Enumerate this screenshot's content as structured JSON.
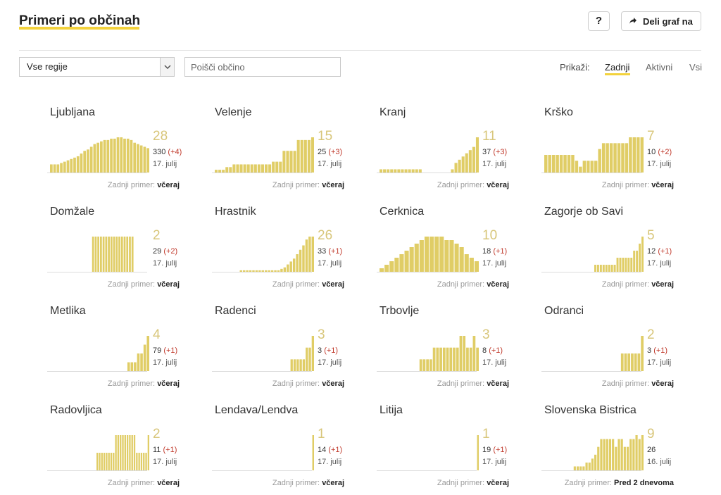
{
  "header": {
    "title": "Primeri po občinah",
    "help_label": "?",
    "share_label": "Deli graf na"
  },
  "filters": {
    "region_value": "Vse regije",
    "search_placeholder": "Poišči občino",
    "show_label": "Prikaži:",
    "show_options": [
      "Zadnji",
      "Aktivni",
      "Vsi"
    ],
    "active_option": "Zadnji"
  },
  "colors": {
    "bar": "#e0cd66",
    "accent": "#f3d23c",
    "delta": "#c0392b"
  },
  "last_case_label": "Zadnji primer:",
  "municipalities": [
    {
      "name": "Ljubljana",
      "active": "28",
      "total": "330",
      "delta": "(+4)",
      "date": "17. julij",
      "last": "včeraj",
      "bars": [
        6,
        6,
        6,
        7,
        8,
        9,
        10,
        11,
        12,
        14,
        16,
        17,
        19,
        21,
        22,
        23,
        24,
        24,
        25,
        25,
        26,
        26,
        25,
        25,
        24,
        22,
        21,
        20,
        19,
        18
      ]
    },
    {
      "name": "Velenje",
      "active": "15",
      "total": "25",
      "delta": "(+3)",
      "date": "17. julij",
      "last": "včeraj",
      "bars": [
        1,
        1,
        1,
        2,
        2,
        3,
        3,
        3,
        3,
        3,
        3,
        3,
        3,
        3,
        3,
        3,
        4,
        4,
        4,
        8,
        8,
        8,
        8,
        12,
        12,
        12,
        12,
        13
      ]
    },
    {
      "name": "Kranj",
      "active": "11",
      "total": "37",
      "delta": "(+3)",
      "date": "17. julij",
      "last": "včeraj",
      "bars": [
        1,
        1,
        1,
        1,
        1,
        1,
        1,
        1,
        1,
        1,
        1,
        1,
        0,
        0,
        0,
        0,
        0,
        0,
        0,
        0,
        1,
        3,
        4,
        5,
        6,
        7,
        8,
        11
      ]
    },
    {
      "name": "Krško",
      "active": "7",
      "total": "10",
      "delta": "(+2)",
      "date": "17. julij",
      "last": "včeraj",
      "bars": [
        3,
        3,
        3,
        3,
        3,
        3,
        3,
        3,
        2,
        1,
        2,
        2,
        2,
        2,
        4,
        5,
        5,
        5,
        5,
        5,
        5,
        5,
        6,
        6,
        6,
        6
      ]
    },
    {
      "name": "Domžale",
      "active": "2",
      "total": "29",
      "delta": "(+2)",
      "date": "17. julij",
      "last": "včeraj",
      "bars": [
        0,
        0,
        0,
        0,
        0,
        0,
        0,
        0,
        0,
        0,
        0,
        0,
        0,
        0,
        0,
        0,
        1,
        1,
        1,
        1,
        1,
        1,
        1,
        1,
        1,
        1,
        1,
        1,
        1,
        1,
        1,
        1,
        0,
        0,
        0,
        0,
        0,
        0
      ]
    },
    {
      "name": "Hrastnik",
      "active": "26",
      "total": "33",
      "delta": "(+1)",
      "date": "17. julij",
      "last": "včeraj",
      "bars": [
        0,
        0,
        0,
        0,
        0,
        0,
        0,
        0,
        1,
        1,
        1,
        1,
        1,
        1,
        1,
        1,
        1,
        1,
        1,
        1,
        1,
        2,
        3,
        5,
        7,
        9,
        12,
        15,
        18,
        22,
        24,
        24
      ]
    },
    {
      "name": "Cerknica",
      "active": "10",
      "total": "18",
      "delta": "(+1)",
      "date": "17. julij",
      "last": "včeraj",
      "bars": [
        1,
        2,
        3,
        4,
        5,
        6,
        7,
        8,
        9,
        10,
        10,
        10,
        10,
        9,
        9,
        8,
        7,
        5,
        4,
        3
      ]
    },
    {
      "name": "Zagorje ob Savi",
      "active": "5",
      "total": "12",
      "delta": "(+1)",
      "date": "17. julij",
      "last": "včeraj",
      "bars": [
        0,
        0,
        0,
        0,
        0,
        0,
        0,
        0,
        0,
        0,
        0,
        0,
        0,
        0,
        0,
        0,
        0,
        0,
        1,
        1,
        1,
        1,
        1,
        1,
        1,
        1,
        2,
        2,
        2,
        2,
        2,
        2,
        3,
        3,
        4,
        5
      ]
    },
    {
      "name": "Metlika",
      "active": "4",
      "total": "79",
      "delta": "(+1)",
      "date": "17. julij",
      "last": "včeraj",
      "bars": [
        0,
        0,
        0,
        0,
        0,
        0,
        0,
        0,
        0,
        0,
        0,
        0,
        0,
        0,
        0,
        0,
        0,
        0,
        0,
        0,
        0,
        0,
        0,
        0,
        1,
        1,
        1,
        2,
        2,
        3,
        4
      ]
    },
    {
      "name": "Radenci",
      "active": "3",
      "total": "3",
      "delta": "(+1)",
      "date": "17. julij",
      "last": "včeraj",
      "bars": [
        0,
        0,
        0,
        0,
        0,
        0,
        0,
        0,
        0,
        0,
        0,
        0,
        0,
        0,
        0,
        0,
        0,
        0,
        0,
        0,
        0,
        0,
        0,
        0,
        0,
        1,
        1,
        1,
        1,
        1,
        2,
        2,
        3
      ]
    },
    {
      "name": "Trbovlje",
      "active": "3",
      "total": "8",
      "delta": "(+1)",
      "date": "17. julij",
      "last": "včeraj",
      "bars": [
        0,
        0,
        0,
        0,
        0,
        0,
        0,
        0,
        0,
        0,
        0,
        0,
        1,
        1,
        1,
        1,
        2,
        2,
        2,
        2,
        2,
        2,
        2,
        2,
        3,
        3,
        2,
        2,
        3,
        2
      ]
    },
    {
      "name": "Odranci",
      "active": "2",
      "total": "3",
      "delta": "(+1)",
      "date": "17. julij",
      "last": "včeraj",
      "bars": [
        0,
        0,
        0,
        0,
        0,
        0,
        0,
        0,
        0,
        0,
        0,
        0,
        0,
        0,
        0,
        0,
        0,
        0,
        0,
        0,
        0,
        0,
        0,
        1,
        1,
        1,
        1,
        1,
        1,
        2
      ]
    },
    {
      "name": "Radovljica",
      "active": "2",
      "total": "11",
      "delta": "(+1)",
      "date": "17. julij",
      "last": "včeraj",
      "bars": [
        0,
        0,
        0,
        0,
        0,
        0,
        0,
        0,
        0,
        0,
        0,
        0,
        0,
        0,
        0,
        0,
        0,
        0,
        0,
        0,
        1,
        1,
        1,
        1,
        1,
        1,
        1,
        1,
        2,
        2,
        2,
        2,
        2,
        2,
        2,
        2,
        2,
        1,
        1,
        1,
        1,
        1,
        2
      ]
    },
    {
      "name": "Lendava/Lendva",
      "active": "1",
      "total": "14",
      "delta": "(+1)",
      "date": "17. julij",
      "last": "včeraj",
      "bars": [
        0,
        0,
        0,
        0,
        0,
        0,
        0,
        0,
        0,
        0,
        0,
        0,
        0,
        0,
        0,
        0,
        0,
        0,
        0,
        0,
        0,
        0,
        0,
        0,
        0,
        0,
        0,
        0,
        0,
        0,
        0,
        0,
        0,
        0,
        0,
        0,
        0,
        0,
        0,
        0,
        1
      ]
    },
    {
      "name": "Litija",
      "active": "1",
      "total": "19",
      "delta": "(+1)",
      "date": "17. julij",
      "last": "včeraj",
      "bars": [
        0,
        0,
        0,
        0,
        0,
        0,
        0,
        0,
        0,
        0,
        0,
        0,
        0,
        0,
        0,
        0,
        0,
        0,
        0,
        0,
        0,
        0,
        0,
        0,
        0,
        0,
        0,
        0,
        0,
        0,
        0,
        0,
        0,
        0,
        0,
        0,
        0,
        0,
        0,
        0,
        1
      ]
    },
    {
      "name": "Slovenska Bistrica",
      "active": "9",
      "total": "26",
      "delta": "",
      "date": "16. julij",
      "last": "Pred 2 dnevoma",
      "bars": [
        0,
        0,
        0,
        0,
        0,
        0,
        0,
        0,
        0,
        0,
        1,
        1,
        1,
        1,
        2,
        2,
        3,
        4,
        6,
        8,
        8,
        8,
        8,
        8,
        6,
        8,
        8,
        6,
        6,
        8,
        8,
        9,
        8,
        9
      ]
    }
  ]
}
